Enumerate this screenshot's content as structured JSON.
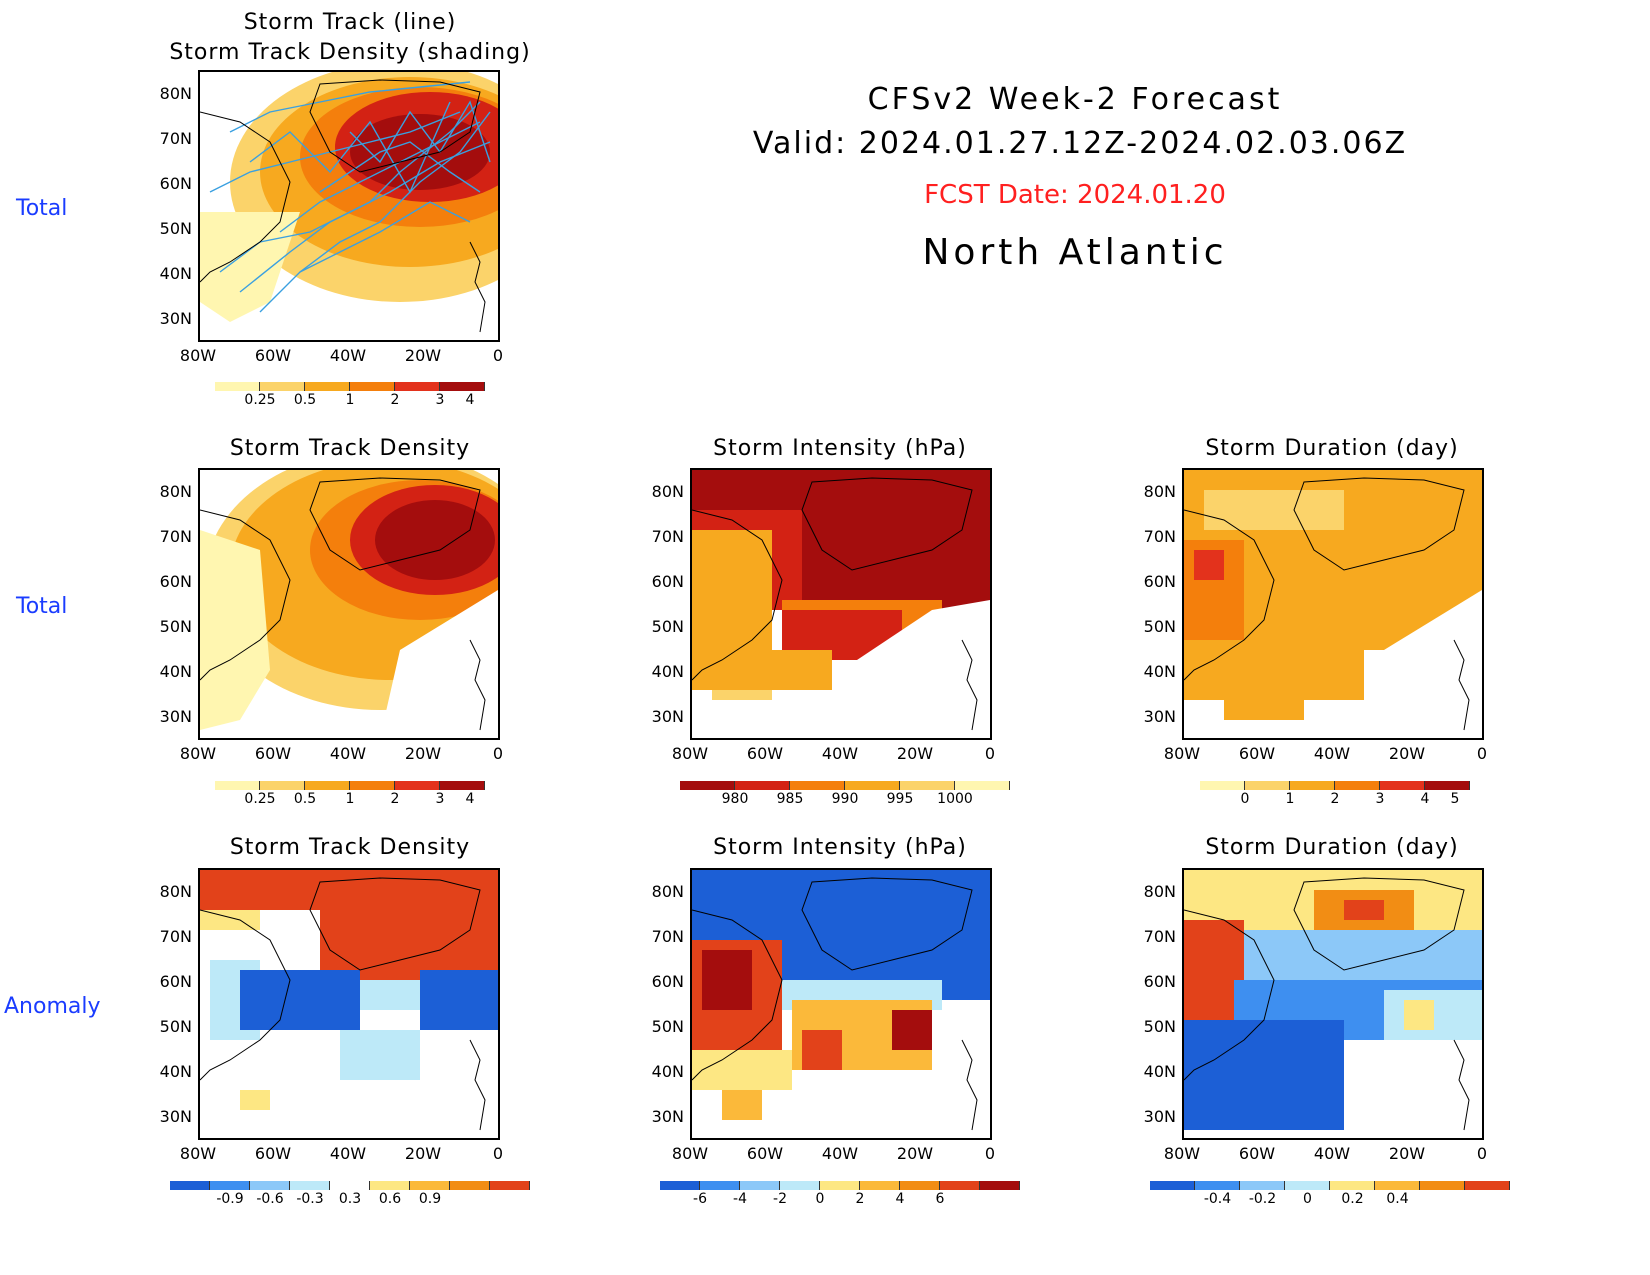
{
  "header": {
    "line1": "CFSv2 Week-2 Forecast",
    "line2": "Valid: 2024.01.27.12Z-2024.02.03.06Z",
    "fcst": "FCST Date: 2024.01.20",
    "region": "North Atlantic",
    "fcst_color": "#ff2020"
  },
  "row_labels": [
    "Total",
    "Total",
    "Anomaly"
  ],
  "axes": {
    "lat_ticks": [
      "80N",
      "70N",
      "60N",
      "50N",
      "40N",
      "30N"
    ],
    "lon_ticks": [
      "80W",
      "60W",
      "40W",
      "20W",
      "0"
    ]
  },
  "panels": {
    "track": {
      "title1": "Storm Track (line)",
      "title2": "Storm Track Density (shading)"
    },
    "density_total": {
      "title": "Storm Track Density"
    },
    "intensity_total": {
      "title": "Storm Intensity (hPa)"
    },
    "duration_total": {
      "title": "Storm Duration (day)"
    },
    "density_anom": {
      "title": "Storm Track Density"
    },
    "intensity_anom": {
      "title": "Storm Intensity (hPa)"
    },
    "duration_anom": {
      "title": "Storm Duration (day)"
    }
  },
  "colorbars": {
    "density": {
      "labels": [
        "0.25",
        "0.5",
        "1",
        "2",
        "3",
        "4"
      ],
      "colors": [
        "#fff6b0",
        "#fbd36a",
        "#f7a91f",
        "#f47f0c",
        "#e3321c",
        "#a40d0d"
      ]
    },
    "intensity": {
      "labels": [
        "980",
        "985",
        "990",
        "995",
        "1000"
      ],
      "colors": [
        "#a40d0d",
        "#d32214",
        "#f47f0c",
        "#f7a91f",
        "#fbd36a",
        "#fff6b0"
      ]
    },
    "duration": {
      "labels": [
        "0",
        "1",
        "2",
        "3",
        "4",
        "5"
      ],
      "colors": [
        "#fff6b0",
        "#fbd36a",
        "#f7a91f",
        "#f47f0c",
        "#e3321c",
        "#a40d0d"
      ]
    },
    "density_anom": {
      "labels": [
        "-0.9",
        "-0.6",
        "-0.3",
        "0.3",
        "0.6",
        "0.9"
      ],
      "colors": [
        "#1c5fd6",
        "#3e8ff0",
        "#8cc8f8",
        "#bde9f8",
        "#ffffff",
        "#fde783",
        "#fbb93a",
        "#f28d14",
        "#e2421a"
      ]
    },
    "intensity_anom": {
      "labels": [
        "-6",
        "-4",
        "-2",
        "0",
        "2",
        "4",
        "6"
      ],
      "colors": [
        "#1c5fd6",
        "#3e8ff0",
        "#8cc8f8",
        "#bde9f8",
        "#fde783",
        "#fbb93a",
        "#f28d14",
        "#e2421a",
        "#a40d0d"
      ]
    },
    "duration_anom": {
      "labels": [
        "-0.4",
        "-0.2",
        "0",
        "0.2",
        "0.4"
      ],
      "colors": [
        "#1c5fd6",
        "#3e8ff0",
        "#8cc8f8",
        "#bde9f8",
        "#fde783",
        "#fbb93a",
        "#f28d14",
        "#e2421a"
      ]
    }
  }
}
